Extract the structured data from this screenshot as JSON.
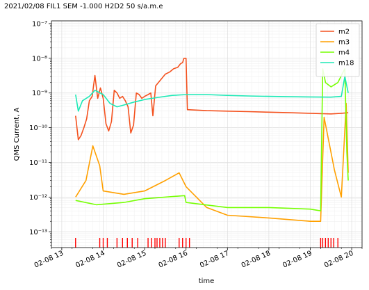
{
  "chart_data": {
    "type": "line",
    "title": "2021/02/08 FIL1 SEM -1.000 H2D2 50 s/a.m.e",
    "xlabel": "time",
    "ylabel": "QMS Current, A",
    "yscale": "log",
    "ylim": [
      3.5e-14,
      1.2e-07
    ],
    "xlim": [
      "2021-02-08 12:45",
      "2021-02-08 20:15"
    ],
    "grid": true,
    "legend_position": "top-right",
    "y_ticks": [
      {
        "value": 1e-13,
        "label": "10⁻¹³"
      },
      {
        "value": 1e-12,
        "label": "10⁻¹²"
      },
      {
        "value": 1e-11,
        "label": "10⁻¹¹"
      },
      {
        "value": 1e-10,
        "label": "10⁻¹⁰"
      },
      {
        "value": 1e-09,
        "label": "10⁻⁹"
      },
      {
        "value": 1e-08,
        "label": "10⁻⁸"
      },
      {
        "value": 1e-07,
        "label": "10⁻⁷"
      }
    ],
    "x_ticks": [
      {
        "value": "2021-02-08 13:00",
        "label": "02-08 13"
      },
      {
        "value": "2021-02-08 14:00",
        "label": "02-08 14"
      },
      {
        "value": "2021-02-08 15:00",
        "label": "02-08 15"
      },
      {
        "value": "2021-02-08 16:00",
        "label": "02-08 16"
      },
      {
        "value": "2021-02-08 17:00",
        "label": "02-08 17"
      },
      {
        "value": "2021-02-08 18:00",
        "label": "02-08 18"
      },
      {
        "value": "2021-02-08 19:00",
        "label": "02-08 19"
      },
      {
        "value": "2021-02-08 20:00",
        "label": "02-08 20"
      }
    ],
    "series": [
      {
        "name": "m2",
        "color": "#f4511e",
        "points": [
          [
            "2021-02-08 13:20",
            2.2e-10
          ],
          [
            "2021-02-08 13:24",
            4.5e-11
          ],
          [
            "2021-02-08 13:28",
            6e-11
          ],
          [
            "2021-02-08 13:32",
            1e-10
          ],
          [
            "2021-02-08 13:36",
            1.8e-10
          ],
          [
            "2021-02-08 13:40",
            6e-10
          ],
          [
            "2021-02-08 13:44",
            8e-10
          ],
          [
            "2021-02-08 13:48",
            3.2e-09
          ],
          [
            "2021-02-08 13:52",
            7e-10
          ],
          [
            "2021-02-08 13:56",
            1.4e-09
          ],
          [
            "2021-02-08 14:00",
            7e-10
          ],
          [
            "2021-02-08 14:04",
            1.3e-10
          ],
          [
            "2021-02-08 14:08",
            8e-11
          ],
          [
            "2021-02-08 14:12",
            1.5e-10
          ],
          [
            "2021-02-08 14:16",
            1.2e-09
          ],
          [
            "2021-02-08 14:20",
            1e-09
          ],
          [
            "2021-02-08 14:24",
            7e-10
          ],
          [
            "2021-02-08 14:28",
            8e-10
          ],
          [
            "2021-02-08 14:32",
            6e-10
          ],
          [
            "2021-02-08 14:36",
            4e-10
          ],
          [
            "2021-02-08 14:40",
            7e-11
          ],
          [
            "2021-02-08 14:44",
            1.2e-10
          ],
          [
            "2021-02-08 14:48",
            1e-09
          ],
          [
            "2021-02-08 14:52",
            9e-10
          ],
          [
            "2021-02-08 14:56",
            7e-10
          ],
          [
            "2021-02-08 15:00",
            8e-10
          ],
          [
            "2021-02-08 15:05",
            9e-10
          ],
          [
            "2021-02-08 15:09",
            1e-09
          ],
          [
            "2021-02-08 15:12",
            2.2e-10
          ],
          [
            "2021-02-08 15:16",
            1.6e-09
          ],
          [
            "2021-02-08 15:24",
            2.5e-09
          ],
          [
            "2021-02-08 15:30",
            3.5e-09
          ],
          [
            "2021-02-08 15:36",
            4e-09
          ],
          [
            "2021-02-08 15:42",
            5e-09
          ],
          [
            "2021-02-08 15:48",
            5.5e-09
          ],
          [
            "2021-02-08 15:52",
            7e-09
          ],
          [
            "2021-02-08 15:55",
            7.5e-09
          ],
          [
            "2021-02-08 15:57",
            1e-08
          ],
          [
            "2021-02-08 16:00",
            1e-08
          ],
          [
            "2021-02-08 16:02",
            3.3e-10
          ],
          [
            "2021-02-08 16:30",
            3.1e-10
          ],
          [
            "2021-02-08 17:00",
            3e-10
          ],
          [
            "2021-02-08 17:30",
            2.9e-10
          ],
          [
            "2021-02-08 18:00",
            2.8e-10
          ],
          [
            "2021-02-08 18:30",
            2.7e-10
          ],
          [
            "2021-02-08 19:00",
            2.6e-10
          ],
          [
            "2021-02-08 19:30",
            2.5e-10
          ],
          [
            "2021-02-08 19:45",
            2.6e-10
          ],
          [
            "2021-02-08 19:55",
            2.7e-10
          ]
        ]
      },
      {
        "name": "m3",
        "color": "#ffa000",
        "points": [
          [
            "2021-02-08 13:20",
            1e-12
          ],
          [
            "2021-02-08 13:35",
            3e-12
          ],
          [
            "2021-02-08 13:45",
            3e-11
          ],
          [
            "2021-02-08 13:55",
            8e-12
          ],
          [
            "2021-02-08 14:00",
            1.5e-12
          ],
          [
            "2021-02-08 14:30",
            1.2e-12
          ],
          [
            "2021-02-08 15:00",
            1.5e-12
          ],
          [
            "2021-02-08 15:30",
            3e-12
          ],
          [
            "2021-02-08 15:50",
            5e-12
          ],
          [
            "2021-02-08 16:00",
            2e-12
          ],
          [
            "2021-02-08 16:30",
            5e-13
          ],
          [
            "2021-02-08 17:00",
            3e-13
          ],
          [
            "2021-02-08 18:00",
            2.5e-13
          ],
          [
            "2021-02-08 19:00",
            2e-13
          ],
          [
            "2021-02-08 19:15",
            2e-13
          ],
          [
            "2021-02-08 19:20",
            2e-10
          ],
          [
            "2021-02-08 19:35",
            6e-12
          ],
          [
            "2021-02-08 19:45",
            1e-12
          ],
          [
            "2021-02-08 19:52",
            5e-10
          ],
          [
            "2021-02-08 19:55",
            5e-12
          ]
        ]
      },
      {
        "name": "m4",
        "color": "#76ff03",
        "points": [
          [
            "2021-02-08 13:20",
            8e-13
          ],
          [
            "2021-02-08 13:50",
            6e-13
          ],
          [
            "2021-02-08 14:30",
            7e-13
          ],
          [
            "2021-02-08 15:00",
            9e-13
          ],
          [
            "2021-02-08 15:30",
            1e-12
          ],
          [
            "2021-02-08 15:58",
            1.1e-12
          ],
          [
            "2021-02-08 16:00",
            7e-13
          ],
          [
            "2021-02-08 17:00",
            5e-13
          ],
          [
            "2021-02-08 18:00",
            5e-13
          ],
          [
            "2021-02-08 19:00",
            4.5e-13
          ],
          [
            "2021-02-08 19:15",
            4e-13
          ],
          [
            "2021-02-08 19:18",
            5e-09
          ],
          [
            "2021-02-08 19:22",
            2e-09
          ],
          [
            "2021-02-08 19:30",
            1.5e-09
          ],
          [
            "2021-02-08 19:40",
            2e-09
          ],
          [
            "2021-02-08 19:50",
            5e-09
          ],
          [
            "2021-02-08 19:53",
            2e-11
          ],
          [
            "2021-02-08 19:55",
            3e-12
          ]
        ]
      },
      {
        "name": "m18",
        "color": "#1de9b6",
        "points": [
          [
            "2021-02-08 13:20",
            9e-10
          ],
          [
            "2021-02-08 13:24",
            3e-10
          ],
          [
            "2021-02-08 13:30",
            6e-10
          ],
          [
            "2021-02-08 13:40",
            8e-10
          ],
          [
            "2021-02-08 13:48",
            1.2e-09
          ],
          [
            "2021-02-08 14:00",
            9e-10
          ],
          [
            "2021-02-08 14:10",
            5e-10
          ],
          [
            "2021-02-08 14:20",
            4e-10
          ],
          [
            "2021-02-08 14:30",
            4.5e-10
          ],
          [
            "2021-02-08 14:45",
            5.5e-10
          ],
          [
            "2021-02-08 15:00",
            6.5e-10
          ],
          [
            "2021-02-08 15:20",
            7.5e-10
          ],
          [
            "2021-02-08 15:40",
            8.5e-10
          ],
          [
            "2021-02-08 16:00",
            9e-10
          ],
          [
            "2021-02-08 16:30",
            9e-10
          ],
          [
            "2021-02-08 17:00",
            8.5e-10
          ],
          [
            "2021-02-08 17:30",
            8.2e-10
          ],
          [
            "2021-02-08 18:00",
            8e-10
          ],
          [
            "2021-02-08 18:30",
            7.8e-10
          ],
          [
            "2021-02-08 19:00",
            7.7e-10
          ],
          [
            "2021-02-08 19:30",
            7.6e-10
          ],
          [
            "2021-02-08 19:45",
            8e-10
          ],
          [
            "2021-02-08 19:50",
            3e-09
          ],
          [
            "2021-02-08 19:55",
            1e-09
          ]
        ]
      }
    ],
    "event_marks": {
      "color": "#ff0000",
      "times": [
        "2021-02-08 13:20",
        "2021-02-08 13:55",
        "2021-02-08 14:00",
        "2021-02-08 14:06",
        "2021-02-08 14:20",
        "2021-02-08 14:28",
        "2021-02-08 14:35",
        "2021-02-08 14:42",
        "2021-02-08 14:50",
        "2021-02-08 15:05",
        "2021-02-08 15:10",
        "2021-02-08 15:15",
        "2021-02-08 15:18",
        "2021-02-08 15:22",
        "2021-02-08 15:26",
        "2021-02-08 15:30",
        "2021-02-08 15:50",
        "2021-02-08 15:55",
        "2021-02-08 16:00",
        "2021-02-08 16:05",
        "2021-02-08 19:15",
        "2021-02-08 19:18",
        "2021-02-08 19:22",
        "2021-02-08 19:26",
        "2021-02-08 19:30",
        "2021-02-08 19:34",
        "2021-02-08 19:40"
      ]
    }
  }
}
